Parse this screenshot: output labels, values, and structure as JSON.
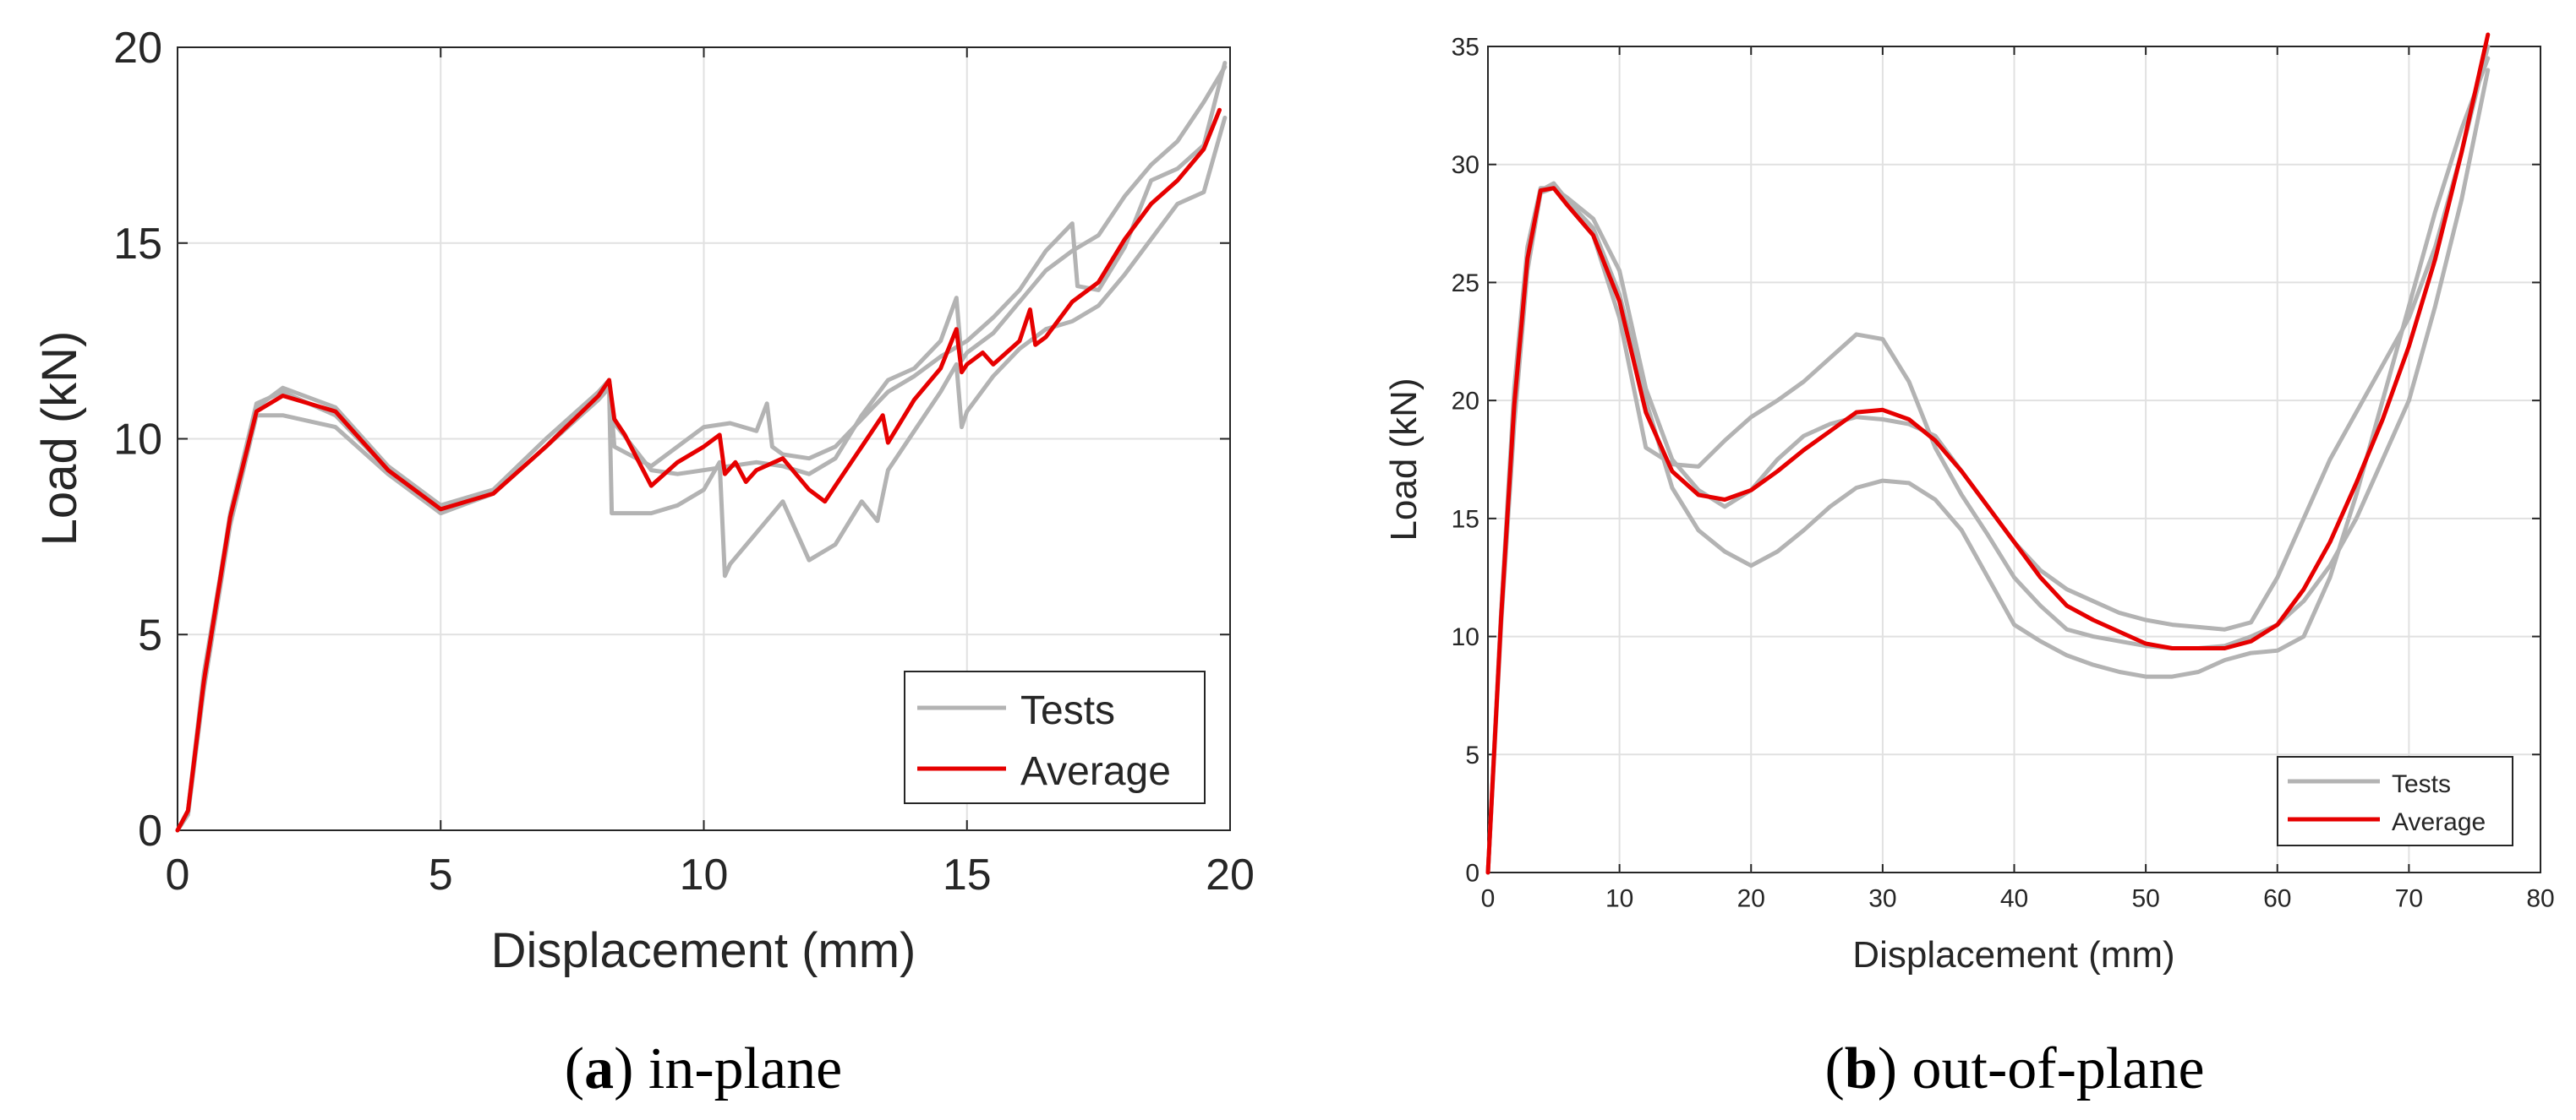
{
  "colors": {
    "tests": "#b3b3b3",
    "average": "#e60000",
    "grid": "#e1e1e1",
    "axis": "#262626",
    "text": "#262626",
    "background": "#ffffff"
  },
  "chart_data": [
    {
      "id": "a",
      "type": "line",
      "xlabel": "Displacement (mm)",
      "ylabel": "Load (kN)",
      "xlim": [
        0,
        20
      ],
      "ylim": [
        0,
        20
      ],
      "xticks": [
        0,
        5,
        10,
        15,
        20
      ],
      "yticks": [
        0,
        5,
        10,
        15,
        20
      ],
      "xtick_labels": [
        "0",
        "5",
        "10",
        "15",
        "20"
      ],
      "ytick_labels": [
        "0",
        "5",
        "10",
        "15",
        "20"
      ],
      "grid": true,
      "legend": {
        "position": "bottom-right",
        "entries": [
          "Tests",
          "Average"
        ]
      },
      "caption": {
        "letter": "a",
        "text": "in-plane"
      },
      "series": [
        {
          "name": "Tests",
          "x": [
            0,
            0.2,
            0.5,
            1,
            1.5,
            2,
            3,
            4,
            5,
            6,
            7,
            8,
            8.2,
            8.3,
            9,
            9.5,
            10,
            10.5,
            11,
            11.5,
            12,
            12.5,
            13,
            13.5,
            14,
            14.5,
            14.8,
            14.9,
            15,
            15.5,
            16,
            16.5,
            17,
            17.5,
            18,
            18.5,
            19,
            19.5,
            19.9
          ],
          "values": [
            0,
            0.5,
            4,
            8,
            10.8,
            11.3,
            10.8,
            9.3,
            8.3,
            8.7,
            10,
            11.2,
            11.5,
            10.4,
            9.2,
            9.1,
            9.2,
            9.3,
            9.4,
            9.3,
            9.1,
            9.5,
            10.6,
            11.5,
            11.8,
            12.5,
            13.6,
            12,
            12.2,
            12.7,
            13.5,
            14.3,
            14.8,
            15.2,
            16.2,
            17,
            17.6,
            18.6,
            19.5
          ]
        },
        {
          "name": "Tests",
          "x": [
            0,
            0.2,
            0.5,
            1,
            1.5,
            2,
            3,
            4,
            5,
            6,
            7,
            8,
            8.2,
            8.25,
            9,
            9.5,
            10,
            10.3,
            10.4,
            10.5,
            11,
            11.5,
            12,
            12.5,
            13,
            13.3,
            13.5,
            14,
            14.5,
            14.8,
            14.9,
            15,
            15.5,
            16,
            16.5,
            17,
            17.5,
            18,
            18.5,
            19,
            19.5,
            19.9
          ],
          "values": [
            0,
            0.4,
            3.6,
            7.8,
            10.6,
            10.6,
            10.3,
            9.1,
            8.1,
            8.6,
            9.8,
            11,
            11.3,
            8.1,
            8.1,
            8.3,
            8.7,
            9.4,
            6.5,
            6.8,
            7.6,
            8.4,
            6.9,
            7.3,
            8.4,
            7.9,
            9.2,
            10.2,
            11.2,
            11.9,
            10.3,
            10.7,
            11.6,
            12.3,
            12.8,
            13,
            13.4,
            14.2,
            15.1,
            16,
            16.3,
            18.2
          ]
        },
        {
          "name": "Tests",
          "x": [
            0,
            0.2,
            0.5,
            1,
            1.5,
            2,
            3,
            4,
            5,
            6,
            7,
            8,
            8.2,
            8.3,
            9,
            9.5,
            10,
            10.5,
            11,
            11.2,
            11.3,
            11.5,
            12,
            12.5,
            13,
            13.5,
            14,
            14.5,
            15,
            15.5,
            16,
            16.5,
            17,
            17.1,
            17.5,
            18,
            18.5,
            19,
            19.5,
            19.9
          ],
          "values": [
            0,
            0.5,
            3.8,
            8.1,
            10.9,
            11.2,
            10.6,
            9.2,
            8.2,
            8.6,
            9.8,
            11.2,
            11.5,
            9.8,
            9.3,
            9.8,
            10.3,
            10.4,
            10.2,
            10.9,
            9.8,
            9.6,
            9.5,
            9.8,
            10.5,
            11.2,
            11.6,
            12.1,
            12.5,
            13.1,
            13.8,
            14.8,
            15.5,
            13.9,
            13.8,
            14.9,
            16.6,
            16.9,
            17.5,
            19.6
          ]
        }
      ],
      "average": {
        "name": "Average",
        "x": [
          0,
          0.2,
          0.5,
          1,
          1.5,
          2,
          3,
          4,
          5,
          6,
          7,
          8,
          8.2,
          8.3,
          8.5,
          9,
          9.5,
          10,
          10.3,
          10.4,
          10.6,
          10.8,
          11,
          11.5,
          12,
          12.3,
          12.5,
          13,
          13.4,
          13.5,
          14,
          14.5,
          14.8,
          14.9,
          15,
          15.3,
          15.5,
          16,
          16.2,
          16.3,
          16.5,
          17,
          17.5,
          18,
          18.5,
          19,
          19.5,
          19.8
        ],
        "values": [
          0,
          0.5,
          3.8,
          8,
          10.7,
          11.1,
          10.7,
          9.2,
          8.2,
          8.6,
          9.8,
          11.1,
          11.5,
          10.5,
          10.1,
          8.8,
          9.4,
          9.8,
          10.1,
          9.1,
          9.4,
          8.9,
          9.2,
          9.5,
          8.7,
          8.4,
          8.8,
          9.8,
          10.6,
          9.9,
          11,
          11.8,
          12.8,
          11.7,
          11.9,
          12.2,
          11.9,
          12.5,
          13.3,
          12.4,
          12.6,
          13.5,
          14,
          15.1,
          16,
          16.6,
          17.4,
          18.4
        ]
      }
    },
    {
      "id": "b",
      "type": "line",
      "xlabel": "Displacement (mm)",
      "ylabel": "Load (kN)",
      "xlim": [
        0,
        80
      ],
      "ylim": [
        0,
        35
      ],
      "xticks": [
        0,
        10,
        20,
        30,
        40,
        50,
        60,
        70,
        80
      ],
      "yticks": [
        0,
        5,
        10,
        15,
        20,
        25,
        30,
        35
      ],
      "xtick_labels": [
        "0",
        "10",
        "20",
        "30",
        "40",
        "50",
        "60",
        "70",
        "80"
      ],
      "ytick_labels": [
        "0",
        "5",
        "10",
        "15",
        "20",
        "25",
        "30",
        "35"
      ],
      "grid": true,
      "legend": {
        "position": "bottom-right",
        "entries": [
          "Tests",
          "Average"
        ]
      },
      "caption": {
        "letter": "b",
        "text": "out-of-plane"
      },
      "series": [
        {
          "name": "Tests",
          "x": [
            0,
            1,
            2,
            3,
            4,
            5,
            6,
            8,
            10,
            12,
            14,
            16,
            18,
            20,
            22,
            24,
            26,
            28,
            30,
            32,
            34,
            36,
            38,
            40,
            42,
            44,
            46,
            48,
            50,
            52,
            54,
            56,
            58,
            60,
            62,
            64,
            66,
            68,
            70,
            72,
            74,
            76
          ],
          "values": [
            0,
            11,
            20,
            26,
            28.9,
            29.2,
            28.5,
            27.3,
            24.5,
            20,
            16.3,
            14.5,
            13.6,
            13,
            13.6,
            14.5,
            15.5,
            16.3,
            16.6,
            16.5,
            15.8,
            14.5,
            12.5,
            10.5,
            9.8,
            9.2,
            8.8,
            8.5,
            8.3,
            8.3,
            8.5,
            9,
            9.3,
            9.4,
            10,
            12.5,
            16,
            20,
            24,
            28,
            31.5,
            34.5
          ]
        },
        {
          "name": "Tests",
          "x": [
            0,
            1,
            2,
            3,
            4,
            5,
            6,
            8,
            10,
            12,
            14,
            16,
            18,
            20,
            22,
            24,
            26,
            28,
            30,
            32,
            34,
            36,
            38,
            40,
            42,
            44,
            46,
            48,
            50,
            52,
            54,
            56,
            58,
            60,
            62,
            64,
            66,
            68,
            70,
            72,
            74,
            76
          ],
          "values": [
            0,
            10.5,
            19,
            25.5,
            28.8,
            29,
            28.6,
            27.7,
            25.5,
            20.5,
            17.5,
            16.2,
            15.5,
            16.2,
            17.5,
            18.5,
            19,
            19.3,
            19.2,
            19,
            18.5,
            17,
            15.5,
            14,
            12.8,
            12,
            11.5,
            11,
            10.7,
            10.5,
            10.4,
            10.3,
            10.6,
            12.5,
            15,
            17.5,
            19.5,
            21.5,
            23.5,
            26.5,
            30.5,
            35
          ]
        },
        {
          "name": "Tests",
          "x": [
            0,
            1,
            2,
            3,
            4,
            5,
            6,
            8,
            10,
            12,
            14,
            16,
            18,
            20,
            22,
            24,
            26,
            28,
            30,
            32,
            34,
            36,
            38,
            40,
            42,
            44,
            46,
            48,
            50,
            52,
            54,
            56,
            58,
            60,
            62,
            64,
            66,
            68,
            70,
            72,
            74,
            76
          ],
          "values": [
            0,
            11,
            20.5,
            26.5,
            29,
            29,
            28.3,
            27,
            23.5,
            18,
            17.3,
            17.2,
            18.3,
            19.3,
            20,
            20.8,
            21.8,
            22.8,
            22.6,
            20.8,
            18,
            16,
            14.3,
            12.5,
            11.3,
            10.3,
            10,
            9.8,
            9.6,
            9.5,
            9.5,
            9.6,
            10,
            10.5,
            11.5,
            13,
            15,
            17.5,
            20,
            24,
            28.5,
            34
          ]
        }
      ],
      "average": {
        "name": "Average",
        "x": [
          0,
          1,
          2,
          3,
          4,
          5,
          6,
          8,
          10,
          12,
          14,
          16,
          18,
          20,
          22,
          24,
          26,
          28,
          30,
          32,
          34,
          36,
          38,
          40,
          42,
          44,
          46,
          48,
          50,
          52,
          54,
          56,
          58,
          60,
          62,
          64,
          66,
          68,
          70,
          72,
          74,
          76
        ],
        "values": [
          0,
          10.8,
          19.8,
          26,
          28.9,
          29,
          28.3,
          27,
          24.2,
          19.5,
          17,
          16,
          15.8,
          16.2,
          17,
          17.9,
          18.7,
          19.5,
          19.6,
          19.2,
          18.3,
          17,
          15.5,
          14,
          12.5,
          11.3,
          10.7,
          10.2,
          9.7,
          9.5,
          9.5,
          9.5,
          9.8,
          10.5,
          12,
          14,
          16.5,
          19.2,
          22.3,
          26,
          30.5,
          35.5
        ]
      }
    }
  ]
}
